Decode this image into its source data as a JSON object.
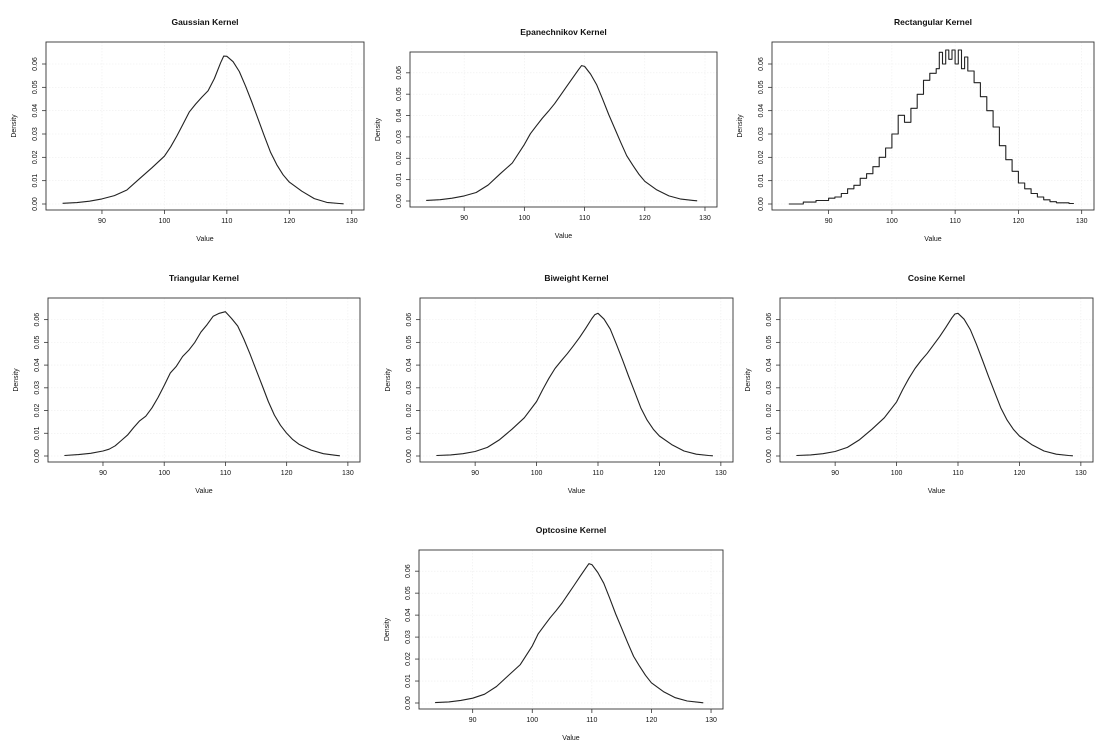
{
  "chart_data": [
    {
      "type": "line",
      "title": "Gaussian Kernel",
      "xlabel": "Value",
      "ylabel": "Density",
      "xlim": [
        82,
        131
      ],
      "ylim": [
        0,
        0.066
      ],
      "xticks": [
        "90",
        "100",
        "110",
        "120",
        "130"
      ],
      "yticks": [
        "0.00",
        "0.01",
        "0.02",
        "0.03",
        "0.04",
        "0.05",
        "0.06"
      ],
      "grid": true,
      "steps": false,
      "series": [
        {
          "name": "density",
          "x": [
            83.7,
            86,
            88,
            90,
            92,
            94,
            96,
            98,
            100,
            101,
            102,
            103,
            104,
            105,
            106,
            107,
            108,
            109,
            109.5,
            110,
            111,
            112,
            113,
            114,
            115,
            116,
            117,
            118,
            119,
            120,
            122,
            124,
            126,
            128,
            128.7
          ],
          "y": [
            0.0003,
            0.0006,
            0.0012,
            0.0022,
            0.0036,
            0.006,
            0.0108,
            0.0155,
            0.0205,
            0.0245,
            0.0292,
            0.0343,
            0.0395,
            0.0428,
            0.0458,
            0.0485,
            0.0538,
            0.0605,
            0.0634,
            0.0633,
            0.061,
            0.0568,
            0.0505,
            0.0437,
            0.0364,
            0.0292,
            0.0221,
            0.0168,
            0.0125,
            0.0094,
            0.0055,
            0.0023,
            0.0007,
            0.0002,
            0.0001
          ]
        }
      ]
    },
    {
      "type": "line",
      "title": "Epanechnikov Kernel",
      "xlabel": "Value",
      "ylabel": "Density",
      "xlim": [
        82,
        131
      ],
      "ylim": [
        0,
        0.066
      ],
      "xticks": [
        "90",
        "100",
        "110",
        "120",
        "130"
      ],
      "yticks": [
        "0.00",
        "0.01",
        "0.02",
        "0.03",
        "0.04",
        "0.05",
        "0.06"
      ],
      "grid": true,
      "steps": false,
      "series": [
        {
          "name": "density",
          "x": [
            83.7,
            86,
            88,
            90,
            92,
            94,
            96,
            98,
            100,
            101,
            102,
            103,
            104,
            105,
            106,
            107,
            108,
            109,
            109.5,
            110,
            111,
            112,
            113,
            114,
            115,
            116,
            117,
            118,
            119,
            120,
            122,
            124,
            126,
            128,
            128.7
          ],
          "y": [
            0.0003,
            0.0006,
            0.0013,
            0.0024,
            0.004,
            0.0075,
            0.0128,
            0.0178,
            0.0265,
            0.0315,
            0.0352,
            0.0388,
            0.042,
            0.0455,
            0.0495,
            0.0535,
            0.0575,
            0.0615,
            0.0634,
            0.063,
            0.0594,
            0.0545,
            0.0477,
            0.0405,
            0.034,
            0.0275,
            0.0212,
            0.0168,
            0.0126,
            0.0092,
            0.0052,
            0.0024,
            0.0009,
            0.0003,
            0.0001
          ]
        }
      ]
    },
    {
      "type": "line",
      "title": "Rectangular Kernel",
      "xlabel": "Value",
      "ylabel": "Density",
      "xlim": [
        82,
        131
      ],
      "ylim": [
        0,
        0.066
      ],
      "xticks": [
        "90",
        "100",
        "110",
        "120",
        "130"
      ],
      "yticks": [
        "0.00",
        "0.01",
        "0.02",
        "0.03",
        "0.04",
        "0.05",
        "0.06"
      ],
      "grid": true,
      "steps": true,
      "series": [
        {
          "name": "density",
          "x": [
            83.7,
            86,
            88,
            90,
            91,
            92,
            93,
            94,
            95,
            96,
            97,
            98,
            99,
            100,
            101,
            102,
            103,
            104,
            105,
            106,
            107,
            107.5,
            108,
            108.5,
            109,
            109.5,
            110,
            110.5,
            111,
            111.5,
            112,
            113,
            114,
            115,
            116,
            117,
            118,
            119,
            120,
            121,
            122,
            123,
            124,
            125,
            126,
            128,
            128.7
          ],
          "y": [
            0,
            0.0008,
            0.0015,
            0.0025,
            0.003,
            0.0045,
            0.0065,
            0.008,
            0.011,
            0.013,
            0.016,
            0.02,
            0.024,
            0.03,
            0.038,
            0.035,
            0.041,
            0.047,
            0.053,
            0.056,
            0.058,
            0.065,
            0.06,
            0.066,
            0.062,
            0.066,
            0.06,
            0.066,
            0.058,
            0.063,
            0.057,
            0.052,
            0.046,
            0.04,
            0.033,
            0.025,
            0.019,
            0.014,
            0.009,
            0.0065,
            0.0045,
            0.003,
            0.0018,
            0.001,
            0.0005,
            0.0002,
            0
          ]
        }
      ]
    },
    {
      "type": "line",
      "title": "Triangular Kernel",
      "xlabel": "Value",
      "ylabel": "Density",
      "xlim": [
        82,
        131
      ],
      "ylim": [
        0,
        0.066
      ],
      "xticks": [
        "90",
        "100",
        "110",
        "120",
        "130"
      ],
      "yticks": [
        "0.00",
        "0.01",
        "0.02",
        "0.03",
        "0.04",
        "0.05",
        "0.06"
      ],
      "grid": true,
      "steps": false,
      "series": [
        {
          "name": "density",
          "x": [
            83.7,
            86,
            88,
            90,
            91,
            92,
            93,
            94,
            95,
            96,
            97,
            98,
            99,
            100,
            101,
            102,
            103,
            104,
            105,
            106,
            107,
            108,
            109,
            110,
            111,
            112,
            113,
            114,
            115,
            116,
            117,
            118,
            119,
            120,
            121,
            122,
            124,
            126,
            128,
            128.7
          ],
          "y": [
            0.0002,
            0.0006,
            0.0012,
            0.0022,
            0.003,
            0.0045,
            0.0068,
            0.0092,
            0.0125,
            0.0155,
            0.0175,
            0.0212,
            0.0258,
            0.031,
            0.0365,
            0.0395,
            0.0438,
            0.0465,
            0.05,
            0.0545,
            0.0578,
            0.0615,
            0.0628,
            0.0635,
            0.0605,
            0.0572,
            0.0515,
            0.045,
            0.038,
            0.031,
            0.024,
            0.018,
            0.0135,
            0.01,
            0.0072,
            0.0052,
            0.0026,
            0.001,
            0.0003,
            0.0001
          ]
        }
      ]
    },
    {
      "type": "line",
      "title": "Biweight Kernel",
      "xlabel": "Value",
      "ylabel": "Density",
      "xlim": [
        82,
        131
      ],
      "ylim": [
        0,
        0.066
      ],
      "xticks": [
        "90",
        "100",
        "110",
        "120",
        "130"
      ],
      "yticks": [
        "0.00",
        "0.01",
        "0.02",
        "0.03",
        "0.04",
        "0.05",
        "0.06"
      ],
      "grid": true,
      "steps": false,
      "series": [
        {
          "name": "density",
          "x": [
            83.7,
            86,
            88,
            90,
            92,
            94,
            96,
            98,
            100,
            101,
            102,
            103,
            104,
            105,
            106,
            107,
            108,
            109,
            109.5,
            110,
            111,
            112,
            113,
            114,
            115,
            116,
            117,
            118,
            119,
            120,
            122,
            124,
            126,
            128,
            128.7
          ],
          "y": [
            0.0002,
            0.0005,
            0.001,
            0.002,
            0.0038,
            0.0072,
            0.0118,
            0.0168,
            0.024,
            0.0292,
            0.0342,
            0.0385,
            0.0418,
            0.045,
            0.0485,
            0.0522,
            0.0562,
            0.0605,
            0.0622,
            0.0628,
            0.0602,
            0.0558,
            0.0492,
            0.0422,
            0.035,
            0.028,
            0.021,
            0.0158,
            0.0118,
            0.0088,
            0.005,
            0.0022,
            0.0008,
            0.0002,
            0.0001
          ]
        }
      ]
    },
    {
      "type": "line",
      "title": "Cosine Kernel",
      "xlabel": "Value",
      "ylabel": "Density",
      "xlim": [
        82,
        131
      ],
      "ylim": [
        0,
        0.066
      ],
      "xticks": [
        "90",
        "100",
        "110",
        "120",
        "130"
      ],
      "yticks": [
        "0.00",
        "0.01",
        "0.02",
        "0.03",
        "0.04",
        "0.05",
        "0.06"
      ],
      "grid": true,
      "steps": false,
      "series": [
        {
          "name": "density",
          "x": [
            83.7,
            86,
            88,
            90,
            92,
            94,
            96,
            98,
            100,
            101,
            102,
            103,
            104,
            105,
            106,
            107,
            108,
            109,
            109.5,
            110,
            111,
            112,
            113,
            114,
            115,
            116,
            117,
            118,
            119,
            120,
            122,
            124,
            126,
            128,
            128.7
          ],
          "y": [
            0.0002,
            0.0005,
            0.001,
            0.002,
            0.0038,
            0.0072,
            0.0118,
            0.0168,
            0.0238,
            0.0292,
            0.0342,
            0.0385,
            0.042,
            0.0452,
            0.0488,
            0.0525,
            0.0565,
            0.0608,
            0.0625,
            0.0628,
            0.0602,
            0.0556,
            0.0492,
            0.042,
            0.0348,
            0.0278,
            0.021,
            0.0158,
            0.0118,
            0.0088,
            0.005,
            0.0022,
            0.0008,
            0.0002,
            0.0001
          ]
        }
      ]
    },
    {
      "type": "line",
      "title": "Optcosine Kernel",
      "xlabel": "Value",
      "ylabel": "Density",
      "xlim": [
        82,
        131
      ],
      "ylim": [
        0,
        0.066
      ],
      "xticks": [
        "90",
        "100",
        "110",
        "120",
        "130"
      ],
      "yticks": [
        "0.00",
        "0.01",
        "0.02",
        "0.03",
        "0.04",
        "0.05",
        "0.06"
      ],
      "grid": true,
      "steps": false,
      "series": [
        {
          "name": "density",
          "x": [
            83.7,
            86,
            88,
            90,
            92,
            94,
            96,
            98,
            100,
            101,
            102,
            103,
            104,
            105,
            106,
            107,
            108,
            109,
            109.5,
            110,
            111,
            112,
            113,
            114,
            115,
            116,
            117,
            118,
            119,
            120,
            122,
            124,
            126,
            128,
            128.7
          ],
          "y": [
            0.0002,
            0.0005,
            0.0012,
            0.0022,
            0.004,
            0.0075,
            0.0125,
            0.0175,
            0.026,
            0.0315,
            0.0352,
            0.0388,
            0.042,
            0.0455,
            0.0495,
            0.0535,
            0.0575,
            0.0615,
            0.0634,
            0.063,
            0.0594,
            0.0545,
            0.0477,
            0.0405,
            0.034,
            0.0275,
            0.0212,
            0.0168,
            0.0126,
            0.0092,
            0.0052,
            0.0024,
            0.0009,
            0.0003,
            0.0001
          ]
        }
      ]
    }
  ]
}
